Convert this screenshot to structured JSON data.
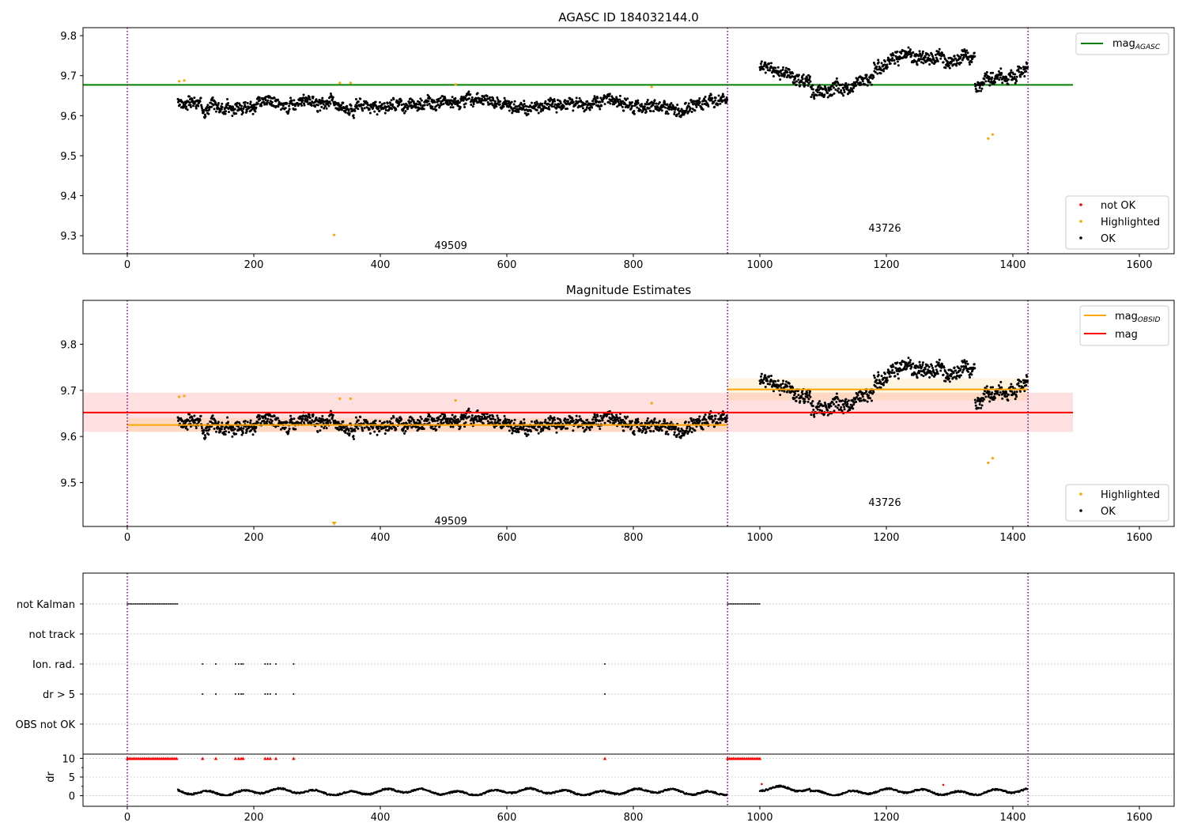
{
  "chart_data": [
    {
      "type": "scatter",
      "title": "AGASC ID 184032144.0",
      "xlim": [
        -70,
        1655
      ],
      "ylim": [
        9.255,
        9.82
      ],
      "xticks": [
        0,
        200,
        400,
        600,
        800,
        1000,
        1200,
        1400,
        1600
      ],
      "yticks": [
        9.3,
        9.4,
        9.5,
        9.6,
        9.7,
        9.8
      ],
      "obs_boundaries": [
        0,
        949,
        1424
      ],
      "obsid_labels": [
        {
          "text": "49509",
          "x": 474,
          "y": 9.277
        },
        {
          "text": "43726",
          "x": 1160,
          "y": 9.32
        }
      ],
      "hlines": [
        {
          "name": "mag_AGASC",
          "y": 9.677,
          "x": [
            -70,
            1495
          ],
          "color": "#008000"
        }
      ],
      "segments": [
        {
          "x0": 80,
          "x1": 949,
          "base": 9.628,
          "amp": 0.007,
          "noise": 0.024,
          "seed": 3
        },
        {
          "x0": 1000,
          "x1": 1424,
          "base": 9.703,
          "amp": 0.02,
          "noise": 0.026,
          "seed": 11
        }
      ],
      "highlighted_points": [
        {
          "x": 82,
          "y": 9.686
        },
        {
          "x": 90,
          "y": 9.688
        },
        {
          "x": 327,
          "y": 9.302
        },
        {
          "x": 336,
          "y": 9.682
        },
        {
          "x": 353,
          "y": 9.682
        },
        {
          "x": 519,
          "y": 9.678
        },
        {
          "x": 829,
          "y": 9.672
        },
        {
          "x": 1361,
          "y": 9.543
        },
        {
          "x": 1368,
          "y": 9.553
        }
      ],
      "legend_lines": [
        {
          "label": "mag",
          "sub": "AGASC",
          "color": "#008000"
        }
      ],
      "legend_markers": [
        {
          "label": "not OK",
          "color": "#ff0000"
        },
        {
          "label": "Highlighted",
          "color": "#ffa500"
        },
        {
          "label": "OK",
          "color": "#000000"
        }
      ]
    },
    {
      "type": "scatter",
      "title": "Magnitude Estimates",
      "xlim": [
        -70,
        1655
      ],
      "ylim": [
        9.405,
        9.895
      ],
      "xticks": [
        0,
        200,
        400,
        600,
        800,
        1000,
        1200,
        1400,
        1600
      ],
      "yticks": [
        9.5,
        9.6,
        9.7,
        9.8
      ],
      "obs_boundaries": [
        0,
        949,
        1424
      ],
      "obsid_labels": [
        {
          "text": "49509",
          "x": 474,
          "y": 9.418
        },
        {
          "text": "43726",
          "x": 1160,
          "y": 9.458
        }
      ],
      "bands": [
        {
          "name": "mag",
          "x": [
            -70,
            1495
          ],
          "y": [
            9.61,
            9.695
          ],
          "color": "#ff0000",
          "line": 9.652
        },
        {
          "name": "mag_OBSID 49509",
          "x": [
            0,
            949
          ],
          "y": [
            9.61,
            9.64
          ],
          "color": "#ffa500",
          "line": 9.625
        },
        {
          "name": "mag_OBSID 43726",
          "x": [
            949,
            1424
          ],
          "y": [
            9.678,
            9.726
          ],
          "color": "#ffa500",
          "line": 9.702
        }
      ],
      "segments": [
        {
          "x0": 80,
          "x1": 949,
          "base": 9.628,
          "amp": 0.007,
          "noise": 0.024,
          "seed": 3
        },
        {
          "x0": 1000,
          "x1": 1424,
          "base": 9.703,
          "amp": 0.02,
          "noise": 0.026,
          "seed": 11
        }
      ],
      "highlighted_points": [
        {
          "x": 82,
          "y": 9.686
        },
        {
          "x": 90,
          "y": 9.688
        },
        {
          "x": 336,
          "y": 9.682
        },
        {
          "x": 353,
          "y": 9.682
        },
        {
          "x": 519,
          "y": 9.678
        },
        {
          "x": 829,
          "y": 9.672
        },
        {
          "x": 1361,
          "y": 9.543
        },
        {
          "x": 1368,
          "y": 9.553
        }
      ],
      "off_scale_points": [
        {
          "x": 327,
          "y": 9.302
        }
      ],
      "legend_lines": [
        {
          "label": "mag",
          "sub": "OBSID",
          "color": "#ffa500"
        },
        {
          "label": "mag",
          "sub": "",
          "color": "#ff0000"
        }
      ],
      "legend_markers": [
        {
          "label": "Highlighted",
          "color": "#ffa500"
        },
        {
          "label": "OK",
          "color": "#000000"
        }
      ]
    },
    {
      "type": "scatter",
      "title": "",
      "xlim": [
        -70,
        1655
      ],
      "xticks": [
        0,
        200,
        400,
        600,
        800,
        1000,
        1200,
        1400,
        1600
      ],
      "obs_boundaries": [
        0,
        949,
        1424
      ],
      "flag_rows": [
        {
          "label": "not Kalman",
          "ranges": [
            [
              0,
              80
            ],
            [
              949,
              1000
            ]
          ],
          "points": []
        },
        {
          "label": "not track",
          "ranges": [],
          "points": []
        },
        {
          "label": "Ion. rad.",
          "ranges": [],
          "points": [
            119,
            140,
            171,
            176,
            180,
            183,
            218,
            222,
            226,
            235,
            263,
            755
          ]
        },
        {
          "label": "dr > 5",
          "ranges": [],
          "points": [
            119,
            140,
            171,
            176,
            180,
            183,
            218,
            222,
            226,
            235,
            263,
            755
          ]
        },
        {
          "label": "OBS not OK",
          "ranges": [],
          "points": []
        }
      ],
      "dr_axis": {
        "label": "dr",
        "ylim": [
          -0.3,
          10.5
        ],
        "yticks": [
          0,
          5,
          10
        ]
      },
      "dr_capped": {
        "value": 10,
        "ranges": [
          [
            0,
            80
          ],
          [
            949,
            1000
          ]
        ],
        "points": [
          119,
          140,
          171,
          176,
          180,
          183,
          218,
          222,
          226,
          235,
          263,
          755
        ]
      },
      "dr_segments": [
        {
          "x0": 80,
          "x1": 949
        },
        {
          "x0": 1000,
          "x1": 1424
        }
      ],
      "dr_red_points": [
        {
          "x": 1003,
          "y": 3.1
        },
        {
          "x": 1290,
          "y": 2.9
        }
      ]
    }
  ]
}
